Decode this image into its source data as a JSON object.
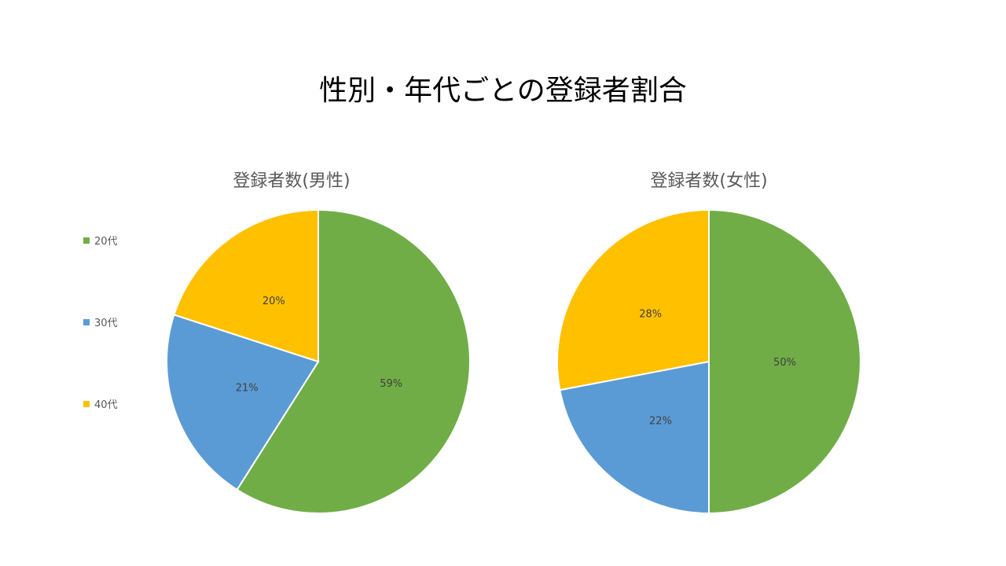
{
  "title": "性別・年代ごとの登録者割合",
  "legend": [
    {
      "label": "20代",
      "color": "#70ad47"
    },
    {
      "label": "30代",
      "color": "#5b9bd5"
    },
    {
      "label": "40代",
      "color": "#ffc000"
    }
  ],
  "chart_data": [
    {
      "type": "pie",
      "title": "登録者数(男性)",
      "categories": [
        "20代",
        "30代",
        "40代"
      ],
      "values": [
        59,
        21,
        20
      ],
      "labels": [
        "59%",
        "21%",
        "20%"
      ],
      "colors": [
        "#70ad47",
        "#5b9bd5",
        "#ffc000"
      ],
      "start_angle_deg": 0,
      "direction": "clockwise"
    },
    {
      "type": "pie",
      "title": "登録者数(女性)",
      "categories": [
        "20代",
        "30代",
        "40代"
      ],
      "values": [
        50,
        22,
        28
      ],
      "labels": [
        "50%",
        "22%",
        "28%"
      ],
      "colors": [
        "#70ad47",
        "#5b9bd5",
        "#ffc000"
      ],
      "start_angle_deg": 0,
      "direction": "clockwise"
    }
  ]
}
